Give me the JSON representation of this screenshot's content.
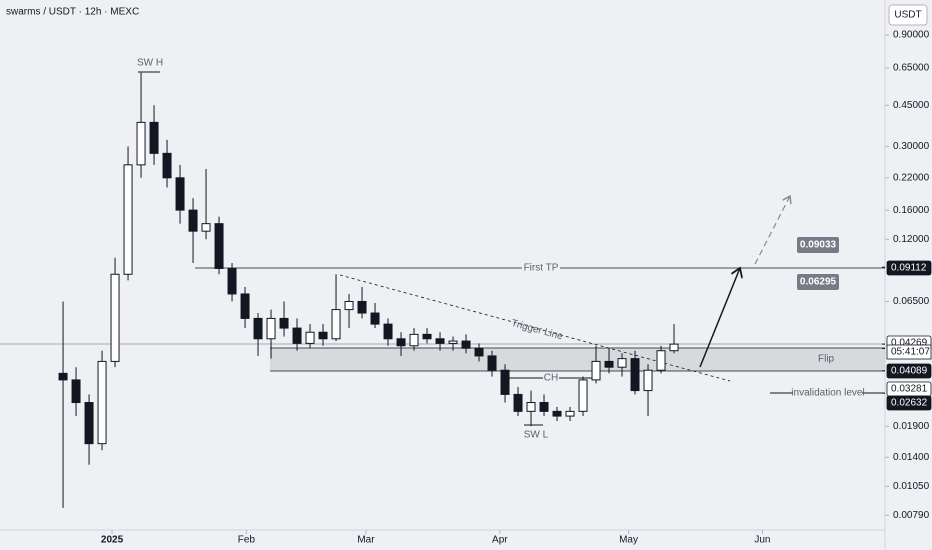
{
  "chart_data": {
    "type": "candlestick",
    "title": "swarms / USDT · 12h · MEXC",
    "currency": "USDT",
    "log_scale": true,
    "ylim": [
      0.00683,
      1.27
    ],
    "yticks": [
      {
        "value": 0.9,
        "label": "0.90000"
      },
      {
        "value": 0.65,
        "label": "0.65000"
      },
      {
        "value": 0.45,
        "label": "0.45000"
      },
      {
        "value": 0.3,
        "label": "0.30000"
      },
      {
        "value": 0.22,
        "label": "0.22000"
      },
      {
        "value": 0.16,
        "label": "0.16000"
      },
      {
        "value": 0.12,
        "label": "0.12000"
      },
      {
        "value": 0.065,
        "label": "0.06500"
      },
      {
        "value": 0.019,
        "label": "0.01900"
      },
      {
        "value": 0.014,
        "label": "0.01400"
      },
      {
        "value": 0.0105,
        "label": "0.01050"
      },
      {
        "value": 0.0079,
        "label": "0.00790"
      }
    ],
    "xlim": [
      -4.85,
      63.23
    ],
    "xticks": [
      {
        "value": 3.77,
        "label": "2025"
      },
      {
        "value": 14.1,
        "label": "Feb"
      },
      {
        "value": 23.3,
        "label": "Mar"
      },
      {
        "value": 33.6,
        "label": "Apr"
      },
      {
        "value": 43.5,
        "label": "May"
      },
      {
        "value": 53.8,
        "label": "Jun"
      }
    ],
    "up_color": "#ffffff",
    "down_color": "#131722",
    "open": [
      0.032,
      0.03,
      0.024,
      0.016,
      0.036,
      0.085,
      0.25,
      0.38,
      0.28,
      0.22,
      0.16,
      0.13,
      0.14,
      0.09,
      0.07,
      0.055,
      0.045,
      0.055,
      0.05,
      0.043,
      0.048,
      0.045,
      0.06,
      0.065,
      0.058,
      0.052,
      0.045,
      0.042,
      0.047,
      0.045,
      0.043,
      0.044,
      0.041,
      0.038,
      0.033,
      0.026,
      0.022,
      0.024,
      0.022,
      0.021,
      0.022,
      0.03,
      0.036,
      0.034,
      0.037,
      0.027,
      0.033,
      0.04
    ],
    "high": [
      0.065,
      0.034,
      0.026,
      0.04,
      0.1,
      0.3,
      0.62,
      0.45,
      0.32,
      0.25,
      0.18,
      0.24,
      0.15,
      0.095,
      0.075,
      0.058,
      0.06,
      0.065,
      0.055,
      0.052,
      0.052,
      0.085,
      0.07,
      0.075,
      0.064,
      0.055,
      0.048,
      0.05,
      0.05,
      0.048,
      0.046,
      0.047,
      0.043,
      0.04,
      0.035,
      0.028,
      0.027,
      0.026,
      0.023,
      0.023,
      0.031,
      0.042,
      0.041,
      0.039,
      0.04,
      0.035,
      0.042,
      0.052
    ],
    "low": [
      0.0085,
      0.021,
      0.013,
      0.015,
      0.034,
      0.08,
      0.22,
      0.25,
      0.2,
      0.14,
      0.095,
      0.12,
      0.085,
      0.065,
      0.05,
      0.038,
      0.037,
      0.046,
      0.04,
      0.041,
      0.042,
      0.044,
      0.05,
      0.055,
      0.05,
      0.042,
      0.038,
      0.04,
      0.043,
      0.04,
      0.04,
      0.039,
      0.036,
      0.031,
      0.024,
      0.021,
      0.019,
      0.021,
      0.02,
      0.02,
      0.021,
      0.029,
      0.032,
      0.031,
      0.026,
      0.021,
      0.032,
      0.039
    ],
    "close": [
      0.03,
      0.024,
      0.016,
      0.036,
      0.085,
      0.25,
      0.38,
      0.28,
      0.22,
      0.16,
      0.13,
      0.14,
      0.09,
      0.07,
      0.055,
      0.045,
      0.055,
      0.05,
      0.043,
      0.048,
      0.045,
      0.06,
      0.065,
      0.058,
      0.052,
      0.045,
      0.042,
      0.047,
      0.045,
      0.043,
      0.044,
      0.041,
      0.038,
      0.033,
      0.026,
      0.022,
      0.024,
      0.022,
      0.021,
      0.022,
      0.03,
      0.036,
      0.034,
      0.037,
      0.027,
      0.033,
      0.04,
      0.04269
    ],
    "price_labels": [
      {
        "value": 0.09112,
        "label": "0.09112"
      },
      {
        "value": 0.04269,
        "label": "0.04269"
      },
      {
        "value": 0.04089,
        "label": "0.04089"
      },
      {
        "value": 0.03281,
        "label": "0.03281"
      },
      {
        "value": 0.02632,
        "label": "0.02632"
      }
    ],
    "countdown": "05:41:07",
    "targets": [
      {
        "value": 0.09033,
        "label": "0.09033"
      },
      {
        "value": 0.06295,
        "label": "0.06295"
      }
    ],
    "annotations": {
      "swing_high": "SW H",
      "first_tp": "First TP",
      "trigger": "Trigger Line",
      "flip": "Flip",
      "change": "CH",
      "swing_low": "SW L",
      "invalidation": "invalidation level"
    }
  }
}
